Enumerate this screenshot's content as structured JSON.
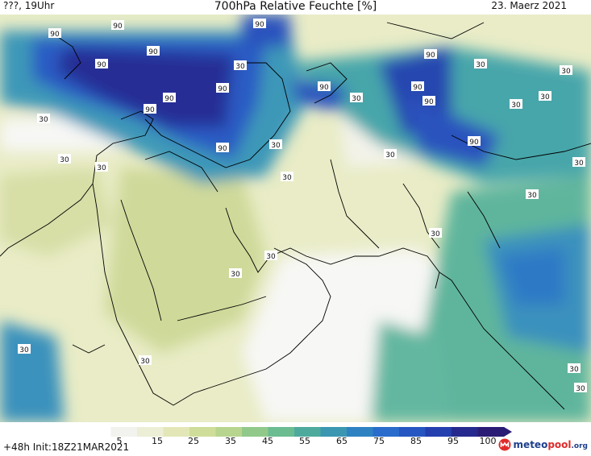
{
  "header": {
    "left": "???, 19Uhr",
    "title": "700hPa Relative Feuchte [%]",
    "right": "23. Maerz 2021"
  },
  "footer": {
    "init": "+48h  Init:18Z21MAR2021",
    "logo": {
      "main": "meteo",
      "accent": "pool",
      "suffix": ".org"
    }
  },
  "colorbar": {
    "labels": [
      "5",
      "15",
      "25",
      "35",
      "45",
      "55",
      "65",
      "75",
      "85",
      "95",
      "100"
    ],
    "colors": [
      "#ffffff",
      "#f2f2ee",
      "#ecefd6",
      "#e3e7b8",
      "#cfdd9a",
      "#b7d58f",
      "#91c98a",
      "#6cbc92",
      "#4faa9e",
      "#3b97b1",
      "#2f82c2",
      "#2a6ccc",
      "#2656c2",
      "#243fae",
      "#262a8e",
      "#2a1c74"
    ]
  },
  "map_labels": [
    "90",
    "90",
    "90",
    "90",
    "90",
    "90",
    "90",
    "90",
    "90",
    "90",
    "90",
    "90",
    "90",
    "90",
    "30",
    "30",
    "30",
    "30",
    "30",
    "30",
    "30",
    "30",
    "30",
    "30",
    "30",
    "30",
    "30",
    "30",
    "30",
    "30",
    "30",
    "30",
    "30",
    "30",
    "30"
  ],
  "icons": {
    "logo": "meteopool-logo-icon"
  }
}
